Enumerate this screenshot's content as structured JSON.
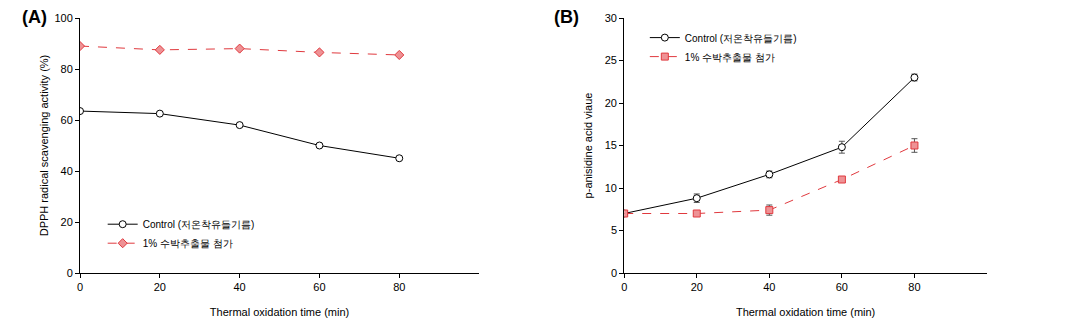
{
  "chart_data": [
    {
      "type": "line",
      "title": "(A)",
      "x_label": "Thermal oxidation time (min)",
      "y_label": "DPPH radical scavenging activity (%)",
      "x": [
        0,
        20,
        40,
        60,
        80
      ],
      "series": [
        {
          "name": "Control (저온착유들기름)",
          "color": "#000000",
          "marker": "circle-open",
          "line_style": "solid",
          "values": [
            63.5,
            62.5,
            58,
            50,
            45
          ]
        },
        {
          "name": "1% 수박추출물 첨가",
          "color": "#e0393e",
          "marker": "diamond",
          "line_style": "dash",
          "values": [
            89,
            87.5,
            88,
            86.5,
            85.5
          ]
        }
      ],
      "xlim": [
        0,
        100
      ],
      "xticks": [
        0,
        20,
        40,
        60,
        80
      ],
      "ylim": [
        0,
        100
      ],
      "yticks": [
        0,
        20,
        40,
        60,
        80,
        100
      ],
      "grid": false,
      "legend": "lower left"
    },
    {
      "type": "line",
      "title": "(B)",
      "x_label": "Thermal oxidation time (min)",
      "y_label": "p-anisidine acid viaue",
      "x": [
        0,
        20,
        40,
        60,
        80
      ],
      "series": [
        {
          "name": "Control (저온착유들기름)",
          "color": "#000000",
          "marker": "circle-open",
          "line_style": "solid",
          "values": [
            7,
            8.8,
            11.6,
            14.8,
            23
          ],
          "errors": [
            0,
            0.5,
            0.4,
            0.7,
            0.4
          ]
        },
        {
          "name": "1% 수박추출물 첨가",
          "color": "#e0393e",
          "marker": "square",
          "line_style": "dash",
          "values": [
            7,
            7,
            7.4,
            11,
            15
          ],
          "errors": [
            0,
            0,
            0.6,
            0.3,
            0.8
          ]
        }
      ],
      "xlim": [
        0,
        100
      ],
      "xticks": [
        0,
        20,
        40,
        60,
        80
      ],
      "ylim": [
        0,
        30
      ],
      "yticks": [
        0,
        5,
        10,
        15,
        20,
        25,
        30
      ],
      "grid": false,
      "legend": "upper left"
    }
  ]
}
